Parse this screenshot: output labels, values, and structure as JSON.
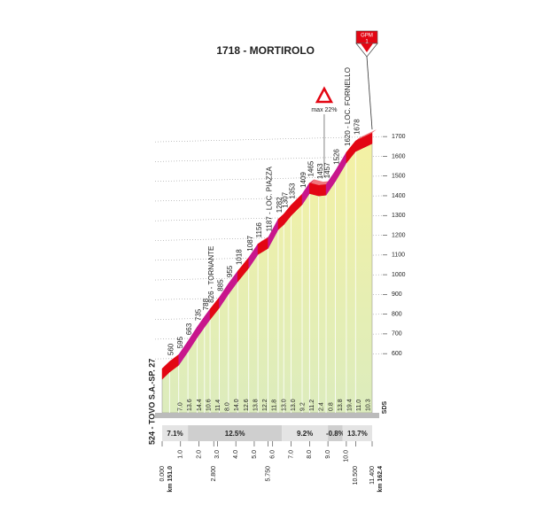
{
  "chart_data": {
    "type": "profile",
    "title": "1718 - MORTIROLO",
    "summit_badge": "GPM",
    "summit_category": "1",
    "start_label": "524 - TOVO S.A.-SP. 27",
    "max_gradient_label": "max 22%",
    "max_gradient_x": 8.8,
    "x": [
      0,
      0.4,
      0.9,
      1.4,
      1.9,
      2.3,
      2.6,
      3.1,
      3.6,
      4.1,
      4.7,
      5.2,
      5.75,
      6.3,
      6.6,
      7.0,
      7.6,
      8.0,
      8.5,
      8.9,
      9.4,
      10.0,
      10.5,
      11.4
    ],
    "values": [
      524,
      560,
      595,
      663,
      735,
      788,
      826,
      885,
      955,
      1018,
      1087,
      1156,
      1187,
      1282,
      1307,
      1353,
      1409,
      1465,
      1453,
      1457,
      1526,
      1620,
      1678,
      1718
    ],
    "value_labels": [
      null,
      "560",
      "595",
      "663",
      "735",
      "788",
      "826 - TORNANTE",
      "885",
      "955",
      "1018",
      "1087",
      "1156",
      "1187 - LOC. PIAZZA",
      "1282",
      "1307",
      "1353",
      "1409",
      "1465",
      "1453",
      "1457",
      "1526",
      "1620 - LOC. FORNELLO",
      "1678",
      null
    ],
    "color": "#e30613",
    "steep_color": "#c8168c",
    "grade_labels": [
      "7.0",
      "13.6",
      "14.4",
      "10.6",
      "11.4",
      "8.0",
      "14.0",
      "12.6",
      "13.8",
      "12.2",
      "11.8",
      "13.0",
      "13.0",
      "9.2",
      "11.2",
      "2.4",
      "0.8",
      "13.8",
      "19.4",
      "11.0",
      "10.3"
    ],
    "average_grades": [
      {
        "from": 0,
        "to": 1.4,
        "label": "7.1%"
      },
      {
        "from": 1.4,
        "to": 6.5,
        "label": "12.5%"
      },
      {
        "from": 6.5,
        "to": 9.0,
        "label": "9.2%"
      },
      {
        "from": 9.0,
        "to": 9.8,
        "label": "-0.8%"
      },
      {
        "from": 9.8,
        "to": 11.4,
        "label": "13.7%"
      }
    ],
    "xlim": [
      0,
      11.4
    ],
    "xticks": [
      {
        "value": 0,
        "label": "0.000"
      },
      {
        "value": 1,
        "label": "1.0"
      },
      {
        "value": 2,
        "label": "2.0"
      },
      {
        "value": 2.8,
        "label": "2.800"
      },
      {
        "value": 3,
        "label": "3.0"
      },
      {
        "value": 4,
        "label": "4.0"
      },
      {
        "value": 5,
        "label": "5.0"
      },
      {
        "value": 5.75,
        "label": "5.750"
      },
      {
        "value": 6,
        "label": "6.0"
      },
      {
        "value": 7,
        "label": "7.0"
      },
      {
        "value": 8,
        "label": "8.0"
      },
      {
        "value": 9,
        "label": "9.0"
      },
      {
        "value": 10,
        "label": "10.0"
      },
      {
        "value": 10.5,
        "label": "10.500"
      },
      {
        "value": 11.4,
        "label": "11.400"
      }
    ],
    "km_start": "km 151.0",
    "km_end": "km 162.4",
    "sign": "SDS",
    "ylim": [
      300,
      1750
    ],
    "yticks": [
      600,
      700,
      800,
      900,
      1000,
      1100,
      1200,
      1300,
      1400,
      1500,
      1600,
      1700
    ],
    "grid": true
  }
}
